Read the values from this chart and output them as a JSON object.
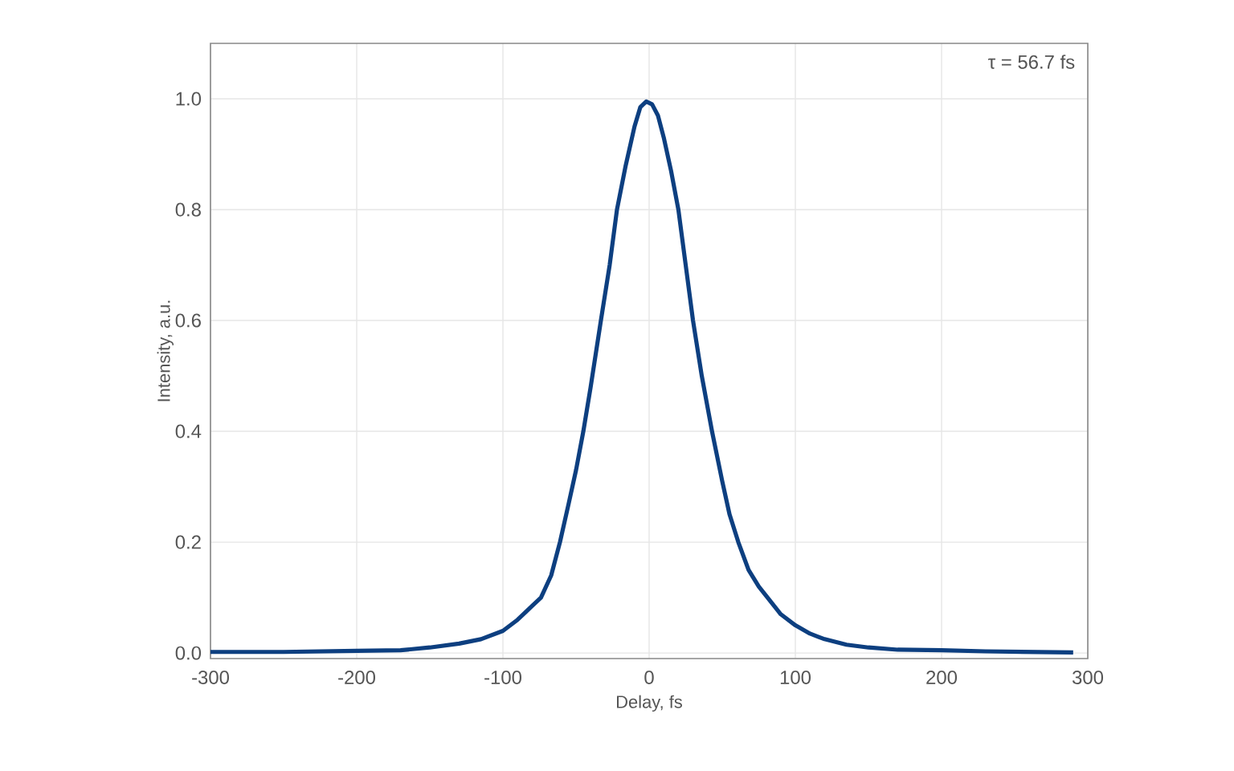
{
  "chart_data": {
    "type": "line",
    "xlabel": "Delay, fs",
    "ylabel": "Intensity, a.u.",
    "annotations": [
      "τ = 56.7 fs"
    ],
    "x": [
      -300,
      -250,
      -200,
      -170,
      -150,
      -130,
      -115,
      -100,
      -90,
      -80,
      -74,
      -67,
      -61,
      -55,
      -50,
      -45,
      -40,
      -33,
      -27,
      -22,
      -16,
      -10,
      -6,
      -2,
      2,
      6,
      10,
      15,
      20,
      25,
      30,
      36,
      43,
      50,
      55,
      61,
      68,
      75,
      81,
      90,
      100,
      110,
      120,
      135,
      150,
      170,
      200,
      230,
      260,
      290
    ],
    "series": [
      {
        "color": "#0d3f80",
        "values": [
          0.002,
          0.002,
          0.004,
          0.005,
          0.01,
          0.017,
          0.025,
          0.04,
          0.06,
          0.085,
          0.1,
          0.14,
          0.2,
          0.27,
          0.33,
          0.4,
          0.48,
          0.6,
          0.7,
          0.8,
          0.88,
          0.95,
          0.985,
          0.995,
          0.99,
          0.97,
          0.93,
          0.87,
          0.8,
          0.7,
          0.6,
          0.5,
          0.4,
          0.31,
          0.25,
          0.2,
          0.15,
          0.12,
          0.1,
          0.07,
          0.05,
          0.035,
          0.025,
          0.015,
          0.01,
          0.006,
          0.005,
          0.003,
          0.002,
          0.001
        ]
      }
    ],
    "xlim": [
      -300,
      300
    ],
    "ylim": [
      -0.01,
      1.1
    ],
    "xticks": [
      -300,
      -200,
      -100,
      0,
      100,
      200,
      300
    ],
    "yticks": [
      {
        "value": 0,
        "label": "0.0"
      },
      {
        "value": 0.2,
        "label": "0.2"
      },
      {
        "value": 0.4,
        "label": "0.4"
      },
      {
        "value": 0.6,
        "label": "0.6"
      },
      {
        "value": 0.8,
        "label": "0.8"
      },
      {
        "value": 1.0,
        "label": "1.0"
      }
    ],
    "grid": true,
    "legend": false,
    "marker": "none",
    "line_style": "solid"
  }
}
